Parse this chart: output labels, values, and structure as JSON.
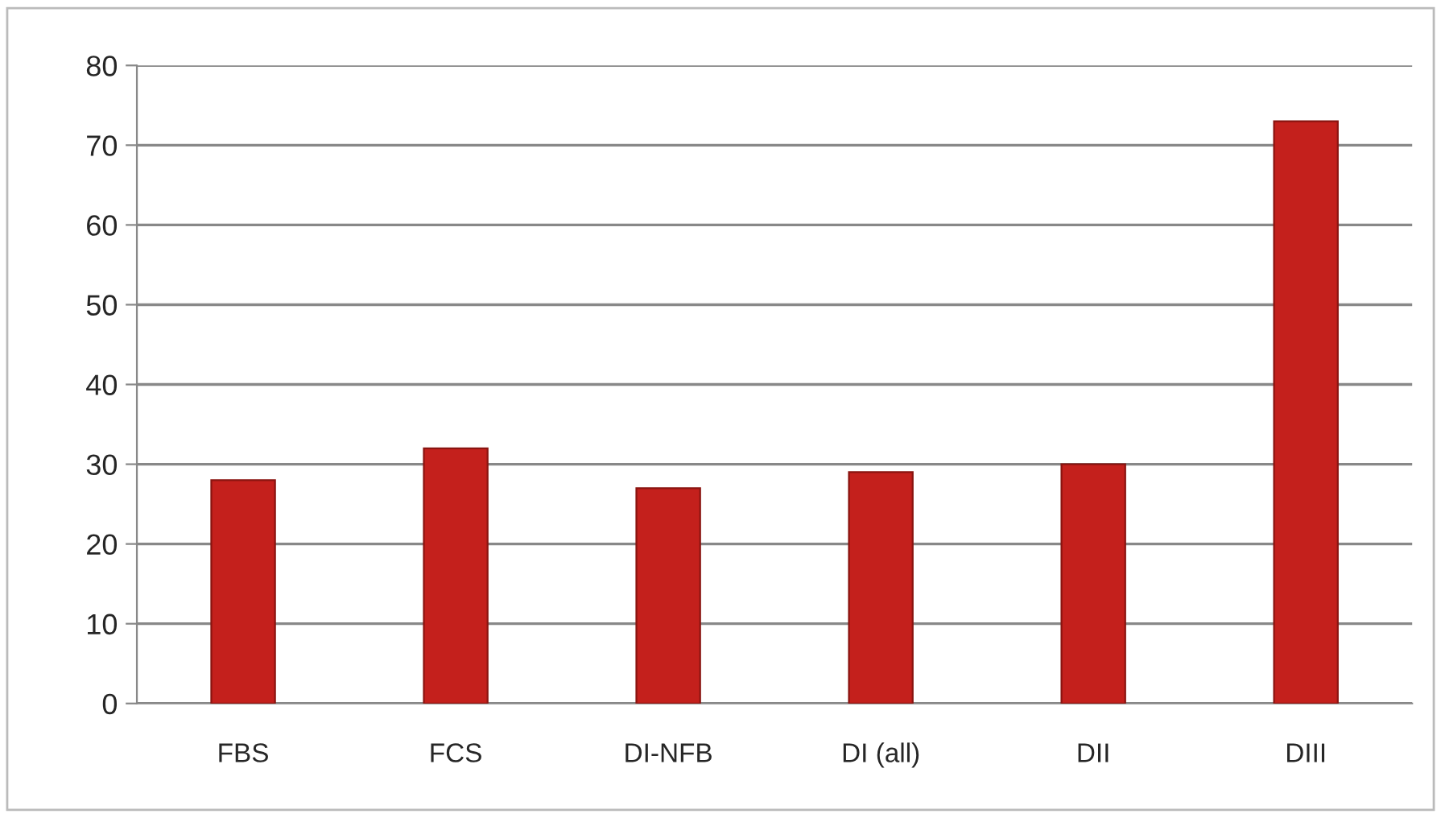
{
  "chart_data": {
    "type": "bar",
    "categories": [
      "FBS",
      "FCS",
      "DI-NFB",
      "DI (all)",
      "DII",
      "DIII"
    ],
    "values": [
      28,
      32,
      27,
      29,
      30,
      73
    ],
    "color": "#c4201c",
    "ylim": [
      0,
      80
    ],
    "yticks": [
      0,
      10,
      20,
      30,
      40,
      50,
      60,
      70,
      80
    ],
    "grid": "y"
  }
}
